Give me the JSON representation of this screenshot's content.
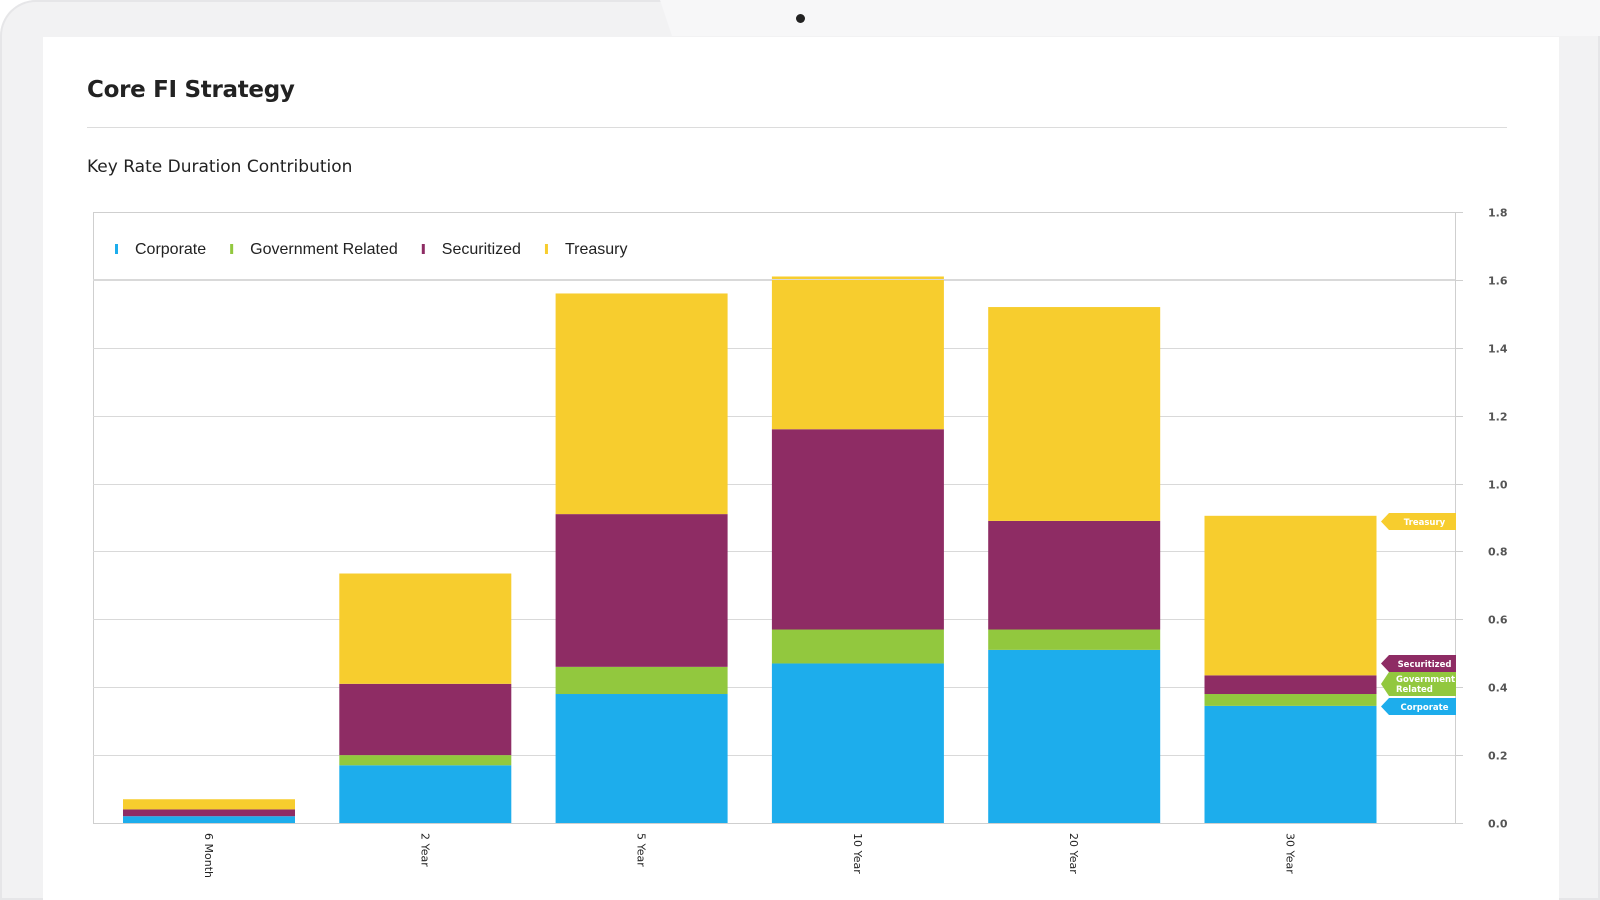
{
  "page": {
    "title": "Core FI Strategy",
    "subtitle": "Key Rate Duration Contribution"
  },
  "chart_data": {
    "type": "bar",
    "stacked": true,
    "title": "Key Rate Duration Contribution",
    "categories": [
      "6 Month",
      "2 Year",
      "5 Year",
      "10 Year",
      "20 Year",
      "30 Year"
    ],
    "series": [
      {
        "name": "Corporate",
        "color": "#1dadec",
        "values": [
          0.02,
          0.17,
          0.38,
          0.47,
          0.51,
          0.345
        ]
      },
      {
        "name": "Government Related",
        "color": "#92c83e",
        "values": [
          0.0,
          0.03,
          0.08,
          0.1,
          0.06,
          0.035
        ]
      },
      {
        "name": "Securitized",
        "color": "#8e2c64",
        "values": [
          0.02,
          0.21,
          0.45,
          0.59,
          0.32,
          0.055
        ]
      },
      {
        "name": "Treasury",
        "color": "#f7cd2e",
        "values": [
          0.03,
          0.325,
          0.65,
          0.45,
          0.63,
          0.47
        ]
      }
    ],
    "end_labels": [
      "Treasury",
      "Securitized",
      "Government Related",
      "Corporate"
    ],
    "yaxis": {
      "position": "right",
      "ticks": [
        "0.0",
        "0.2",
        "0.4",
        "0.6",
        "0.8",
        "1.0",
        "1.2",
        "1.4",
        "1.6",
        "1.8"
      ],
      "ylim": [
        0,
        1.8
      ]
    },
    "xlabel": "",
    "ylabel": "",
    "legend_position": "top-left",
    "grid": true
  }
}
